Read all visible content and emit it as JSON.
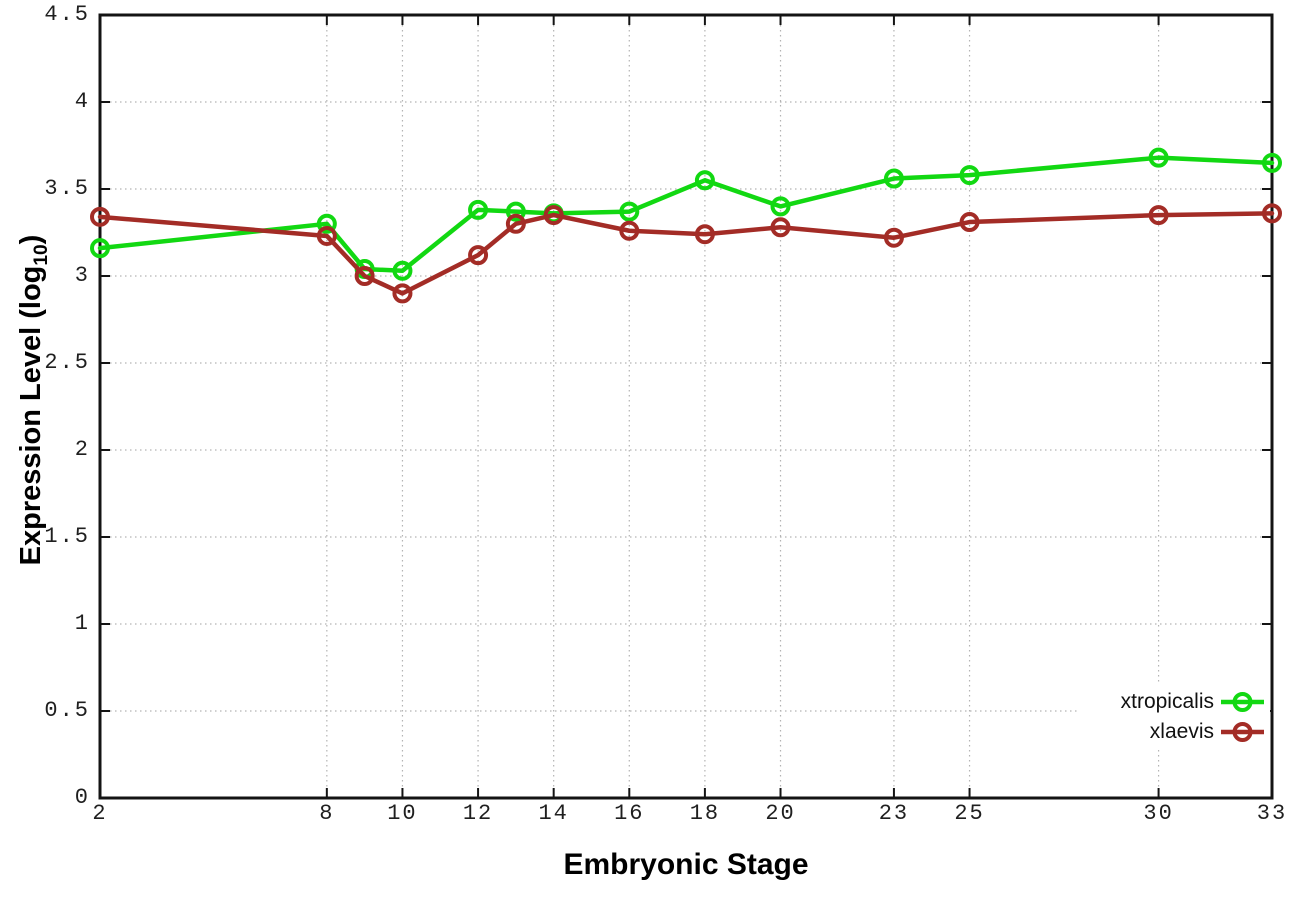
{
  "chart_data": {
    "type": "line",
    "title": "",
    "xlabel": "Embryonic Stage",
    "ylabel": "Expression Level (log10)",
    "ylabel_parts": {
      "prefix": "Expression Level (log",
      "sub": "10",
      "suffix": ")"
    },
    "xlim": [
      2,
      33
    ],
    "ylim": [
      0,
      4.5
    ],
    "x_ticks": [
      2,
      8,
      10,
      12,
      14,
      16,
      18,
      20,
      23,
      25,
      30,
      33
    ],
    "y_ticks": [
      0,
      0.5,
      1,
      1.5,
      2,
      2.5,
      3,
      3.5,
      4,
      4.5
    ],
    "grid": "dotted",
    "legend_position": "bottom-right",
    "marker": "open-circle",
    "series": [
      {
        "name": "xtropicalis",
        "color": "#12d812",
        "x": [
          2,
          8,
          9,
          10,
          12,
          13,
          14,
          16,
          18,
          20,
          23,
          25,
          30,
          33
        ],
        "values": [
          3.16,
          3.3,
          3.04,
          3.03,
          3.38,
          3.37,
          3.36,
          3.37,
          3.55,
          3.4,
          3.56,
          3.58,
          3.68,
          3.65
        ]
      },
      {
        "name": "xlaevis",
        "color": "#a32c26",
        "x": [
          2,
          8,
          9,
          10,
          12,
          13,
          14,
          16,
          18,
          20,
          23,
          25,
          30,
          33
        ],
        "values": [
          3.34,
          3.23,
          3.0,
          2.9,
          3.12,
          3.3,
          3.35,
          3.26,
          3.24,
          3.28,
          3.22,
          3.31,
          3.35,
          3.36
        ]
      }
    ],
    "colors": {
      "grid": "#b3b3b3",
      "axis": "#141414",
      "tick_text": "#1f1f1f",
      "background": "#ffffff"
    }
  }
}
